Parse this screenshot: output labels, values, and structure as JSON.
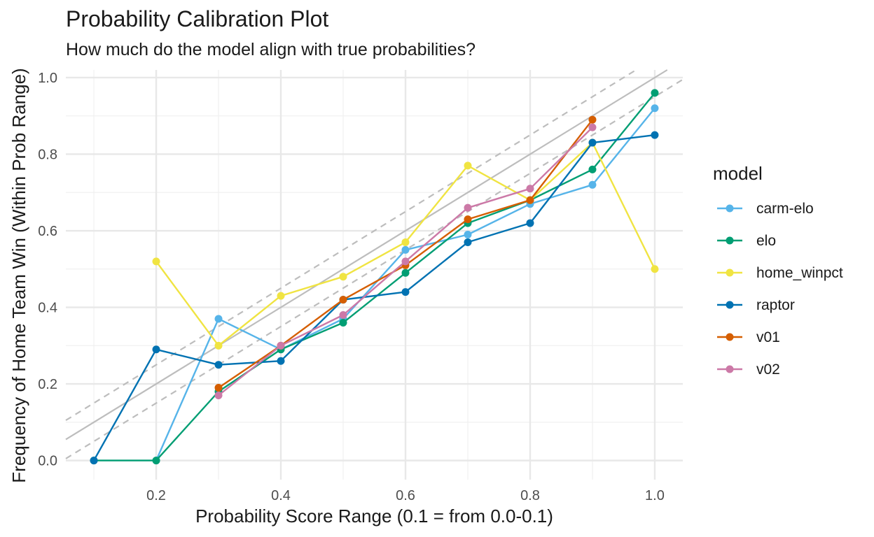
{
  "title": "Probability Calibration Plot",
  "subtitle": "How much do the model align with true probabilities?",
  "chart_data": {
    "type": "line",
    "title": "Probability Calibration Plot",
    "subtitle": "How much do the model align with true probabilities?",
    "xlabel": "Probability Score Range (0.1 = from 0.0-0.1)",
    "ylabel": "Frequency of Home Team Win (Within Prob Range)",
    "xlim": [
      0.055,
      1.045
    ],
    "ylim": [
      -0.05,
      1.02
    ],
    "x_ticks": [
      "0.2",
      "0.4",
      "0.6",
      "0.8",
      "1.0"
    ],
    "x_tick_values": [
      0.2,
      0.4,
      0.6,
      0.8,
      1.0
    ],
    "y_ticks": [
      "0.0",
      "0.2",
      "0.4",
      "0.6",
      "0.8",
      "1.0"
    ],
    "y_tick_values": [
      0.0,
      0.2,
      0.4,
      0.6,
      0.8,
      1.0
    ],
    "grid": true,
    "legend_title": "model",
    "legend_position": "right",
    "reference_lines": [
      {
        "kind": "identity",
        "style": "solid",
        "color": "#bdbdbd",
        "slope": 1,
        "intercept": 0
      },
      {
        "kind": "band-upper",
        "style": "dashed",
        "color": "#bdbdbd",
        "slope": 1,
        "intercept": 0.05
      },
      {
        "kind": "band-lower",
        "style": "dashed",
        "color": "#bdbdbd",
        "slope": 1,
        "intercept": -0.05
      }
    ],
    "series": [
      {
        "name": "carm-elo",
        "color": "#56B4E9",
        "x": [
          0.2,
          0.3,
          0.4,
          0.5,
          0.6,
          0.7,
          0.8,
          0.9,
          1.0
        ],
        "y": [
          0.0,
          0.37,
          0.29,
          0.37,
          0.55,
          0.59,
          0.67,
          0.72,
          0.92
        ]
      },
      {
        "name": "elo",
        "color": "#009E73",
        "x": [
          0.1,
          0.2,
          0.3,
          0.4,
          0.5,
          0.6,
          0.7,
          0.8,
          0.9,
          1.0
        ],
        "y": [
          0.0,
          0.0,
          0.18,
          0.29,
          0.36,
          0.49,
          0.62,
          0.68,
          0.76,
          0.96
        ]
      },
      {
        "name": "home_winpct",
        "color": "#F0E442",
        "x": [
          0.2,
          0.3,
          0.4,
          0.5,
          0.6,
          0.7,
          0.8,
          0.9,
          1.0
        ],
        "y": [
          0.52,
          0.3,
          0.43,
          0.48,
          0.57,
          0.77,
          0.68,
          0.83,
          0.5
        ]
      },
      {
        "name": "raptor",
        "color": "#0072B2",
        "x": [
          0.1,
          0.2,
          0.3,
          0.4,
          0.5,
          0.6,
          0.7,
          0.8,
          0.9,
          1.0
        ],
        "y": [
          0.0,
          0.29,
          0.25,
          0.26,
          0.42,
          0.44,
          0.57,
          0.62,
          0.83,
          0.85
        ]
      },
      {
        "name": "v01",
        "color": "#D55E00",
        "x": [
          0.3,
          0.4,
          0.5,
          0.6,
          0.7,
          0.8,
          0.9
        ],
        "y": [
          0.19,
          0.3,
          0.42,
          0.51,
          0.63,
          0.68,
          0.89
        ]
      },
      {
        "name": "v02",
        "color": "#CC79A7",
        "x": [
          0.3,
          0.4,
          0.5,
          0.6,
          0.7,
          0.8,
          0.9
        ],
        "y": [
          0.17,
          0.3,
          0.38,
          0.52,
          0.66,
          0.71,
          0.87
        ]
      }
    ]
  }
}
